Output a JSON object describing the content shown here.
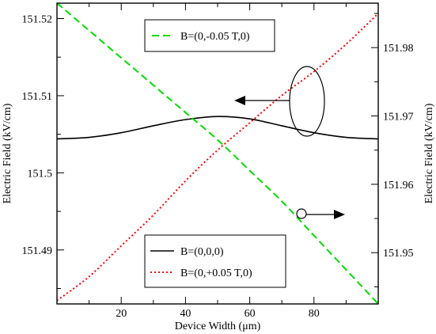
{
  "chart_data": {
    "type": "line",
    "xlabel": "Device Width (μm)",
    "ylabel_left": "Electric Field (kV/cm)",
    "ylabel_right": "Electric Field (kV/cm)",
    "xlim": [
      0,
      100
    ],
    "ylim_left": [
      151.483,
      151.522
    ],
    "ylim_right": [
      151.9425,
      151.9865
    ],
    "xticks": [
      "20",
      "40",
      "60",
      "80"
    ],
    "yticks_left": [
      "151.49",
      "151.5",
      "151.51",
      "151.52"
    ],
    "yticks_right": [
      "151.95",
      "151.96",
      "151.97",
      "151.98"
    ],
    "grid": false,
    "series": [
      {
        "name": "B=(0,0,0)",
        "axis": "left",
        "color": "#000000",
        "style": "solid",
        "x": [
          0,
          10,
          20,
          30,
          40,
          50,
          60,
          70,
          80,
          90,
          100
        ],
        "y": [
          151.5044,
          151.5046,
          151.5052,
          151.5061,
          151.5069,
          151.5073,
          151.507,
          151.5061,
          151.5052,
          151.5046,
          151.5044
        ]
      },
      {
        "name": "B=(0,+0.05 T,0)",
        "axis": "right",
        "color": "#ff0000",
        "style": "dotted",
        "x": [
          0,
          10,
          20,
          30,
          40,
          50,
          60,
          70,
          80,
          90,
          100
        ],
        "y": [
          151.943,
          151.9465,
          151.951,
          151.9555,
          151.9605,
          151.965,
          151.969,
          151.973,
          151.9765,
          151.9805,
          151.985
        ]
      },
      {
        "name": "B=(0,-0.05 T,0)",
        "axis": "right",
        "color": "#00dd00",
        "style": "dashed",
        "x": [
          0,
          10,
          20,
          30,
          40,
          50,
          60,
          70,
          80,
          90,
          100
        ],
        "y": [
          151.9865,
          151.9825,
          151.9785,
          151.9745,
          151.9705,
          151.9665,
          151.962,
          151.9575,
          151.9525,
          151.9475,
          151.9425
        ]
      }
    ],
    "legends": [
      {
        "placement": "top-center",
        "entries": [
          "B=(0,-0.05 T,0)"
        ]
      },
      {
        "placement": "bottom-center",
        "entries": [
          "B=(0,0,0)",
          "B=(0,+0.05 T,0)"
        ]
      }
    ],
    "annotations": [
      {
        "kind": "ellipse-with-arrow",
        "points_to": "left axis",
        "encloses": "B=(0,0,0)"
      },
      {
        "kind": "circle-with-arrow",
        "points_to": "right axis",
        "encloses": "B=(0,-0.05 T,0)"
      }
    ]
  }
}
